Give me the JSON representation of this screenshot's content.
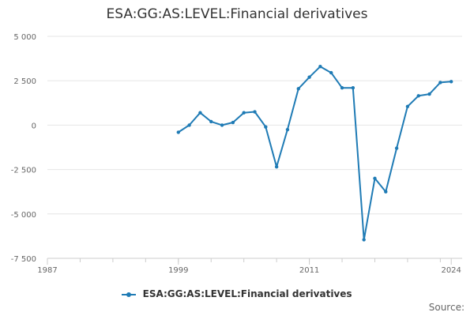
{
  "chart_data": {
    "type": "line",
    "title": "ESA:GG:AS:LEVEL:Financial derivatives",
    "xlabel": "",
    "ylabel": "",
    "xlim": [
      1987,
      2025
    ],
    "ylim": [
      -7500,
      5000
    ],
    "x_ticks": [
      1987,
      1999,
      2011,
      2024
    ],
    "y_ticks": [
      5000,
      2500,
      0,
      -2500,
      -5000,
      -7500
    ],
    "y_tick_labels": [
      "5 000",
      "2 500",
      "0",
      "-2 500",
      "-5 000",
      "-7 500"
    ],
    "grid": true,
    "legend_position": "bottom",
    "series": [
      {
        "name": "ESA:GG:AS:LEVEL:Financial derivatives",
        "color": "#1f7bb5",
        "x": [
          1999,
          2000,
          2001,
          2002,
          2003,
          2004,
          2005,
          2006,
          2007,
          2008,
          2009,
          2010,
          2011,
          2012,
          2013,
          2014,
          2015,
          2016,
          2017,
          2018,
          2019,
          2020,
          2021,
          2022,
          2023,
          2024
        ],
        "y": [
          -400,
          0,
          700,
          200,
          0,
          150,
          700,
          750,
          -100,
          -2350,
          -250,
          2050,
          2700,
          3300,
          2950,
          2100,
          2100,
          -6450,
          -3000,
          -3750,
          -1300,
          1050,
          1650,
          1750,
          2400,
          2450
        ]
      }
    ]
  },
  "footer": {
    "source_label": "Source:"
  }
}
